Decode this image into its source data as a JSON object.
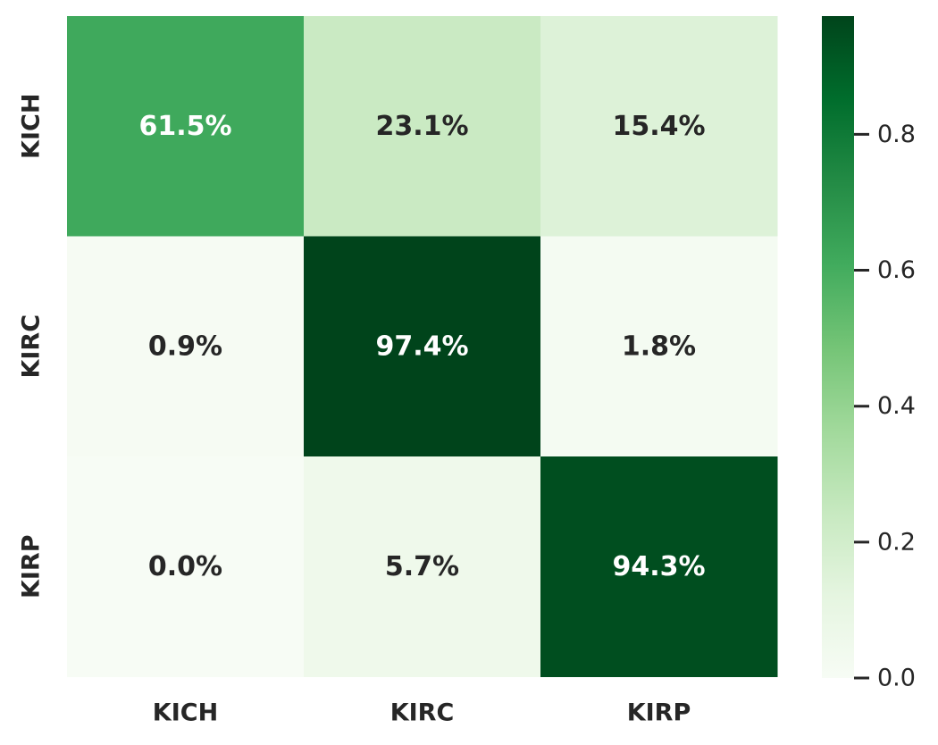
{
  "chart_data": {
    "type": "heatmap",
    "title": "",
    "xlabel": "",
    "ylabel": "",
    "x_categories": [
      "KICH",
      "KIRC",
      "KIRP"
    ],
    "y_categories": [
      "KICH",
      "KIRC",
      "KIRP"
    ],
    "values": [
      [
        0.615,
        0.231,
        0.154
      ],
      [
        0.009,
        0.974,
        0.018
      ],
      [
        0.0,
        0.057,
        0.943
      ]
    ],
    "cell_labels": [
      [
        "61.5%",
        "23.1%",
        "15.4%"
      ],
      [
        "0.9%",
        "97.4%",
        "1.8%"
      ],
      [
        "0.0%",
        "5.7%",
        "94.3%"
      ]
    ],
    "colormap": "Greens",
    "colorbar": {
      "min": 0.0,
      "max": 0.974,
      "ticks": [
        0.0,
        0.2,
        0.4,
        0.6,
        0.8
      ],
      "tick_labels": [
        "0.0",
        "0.2",
        "0.4",
        "0.6",
        "0.8"
      ]
    },
    "colors": {
      "low": "#f7fcf5",
      "high": "#00441b",
      "text_dark": "#262626",
      "text_light": "#ffffff"
    }
  }
}
